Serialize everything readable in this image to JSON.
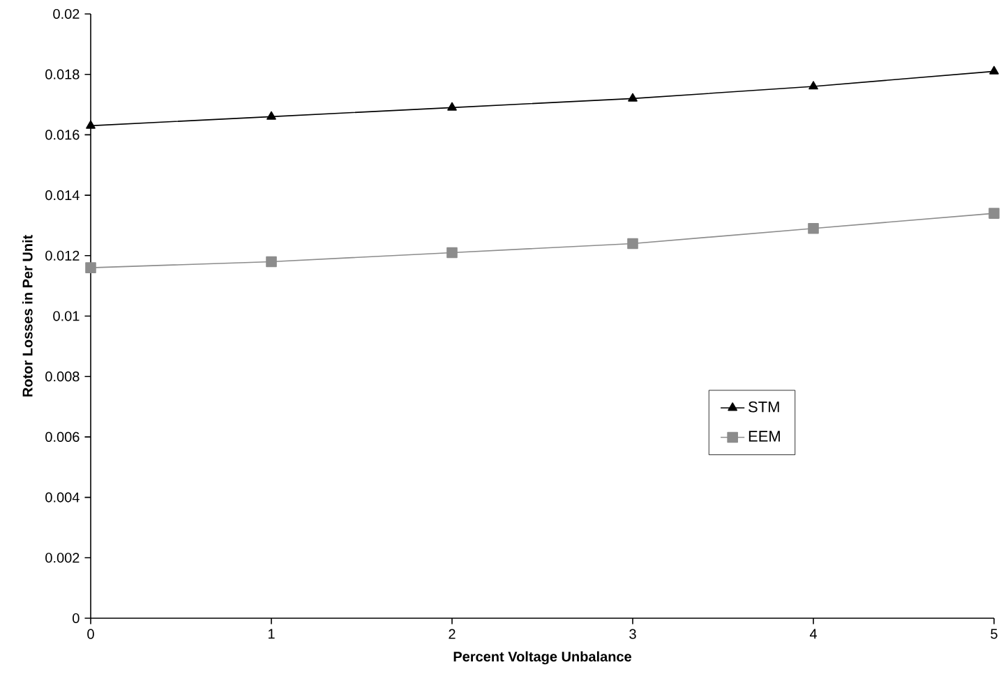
{
  "chart_data": {
    "type": "line",
    "xlabel": "Percent Voltage Unbalance",
    "ylabel": "Rotor Losses in Per Unit",
    "x": [
      0,
      1,
      2,
      3,
      4,
      5
    ],
    "series": [
      {
        "name": "STM",
        "color": "#000000",
        "marker": "triangle",
        "values": [
          0.0163,
          0.0166,
          0.0169,
          0.0172,
          0.0176,
          0.0181
        ]
      },
      {
        "name": "EEM",
        "color": "#8c8c8c",
        "marker": "square",
        "values": [
          0.0116,
          0.0118,
          0.0121,
          0.0124,
          0.0129,
          0.0134
        ]
      }
    ],
    "xlim": [
      0,
      5
    ],
    "xticks": [
      0,
      1,
      2,
      3,
      4,
      5
    ],
    "ylim": [
      0,
      0.02
    ],
    "yticks": [
      0,
      0.002,
      0.004,
      0.006,
      0.008,
      0.01,
      0.012,
      0.014,
      0.016,
      0.018,
      0.02
    ],
    "legend": "center right",
    "grid": false,
    "line_style": "solid"
  }
}
